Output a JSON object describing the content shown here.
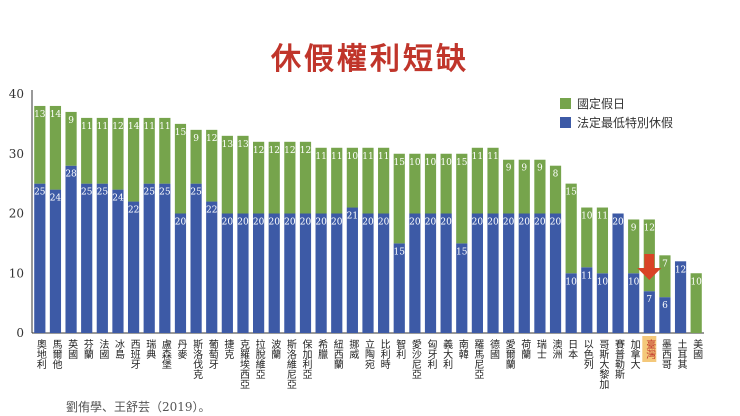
{
  "title": "休假權利短缺",
  "source": "劉侑學、王舒芸（2019）。",
  "colors": {
    "legal": "#3d5aa6",
    "holiday": "#76a44c",
    "highlight_label_bg": "#f4c87a",
    "arrow": "#d94326"
  },
  "chart_data": {
    "type": "bar",
    "stacked": true,
    "title": "休假權利短缺",
    "xlabel": "",
    "ylabel": "",
    "ylim": [
      0,
      40
    ],
    "yticks": [
      0,
      10,
      20,
      30,
      40
    ],
    "grid": false,
    "legend_position": "top-right",
    "highlight": "臺灣",
    "categories": [
      "奧地利",
      "馬爾他",
      "英國",
      "芬蘭",
      "法國",
      "冰島",
      "西班牙",
      "瑞典",
      "盧森堡",
      "丹麥",
      "斯洛伐克",
      "葡萄牙",
      "捷克",
      "克羅埃西亞",
      "拉脫維亞",
      "波蘭",
      "斯洛維尼亞",
      "保加利亞",
      "希臘",
      "紐西蘭",
      "挪威",
      "立陶宛",
      "比利時",
      "智利",
      "愛沙尼亞",
      "匈牙利",
      "義大利",
      "南韓",
      "羅馬尼亞",
      "德國",
      "愛爾蘭",
      "荷蘭",
      "瑞士",
      "澳洲",
      "日本",
      "以色列",
      "哥斯大黎加",
      "賽普勒斯",
      "加拿大",
      "臺灣",
      "墨西哥",
      "土耳其",
      "美國"
    ],
    "series": [
      {
        "name": "法定最低特別休假",
        "color": "#3d5aa6",
        "values": [
          25,
          24,
          28,
          25,
          25,
          24,
          22,
          25,
          25,
          20,
          25,
          22,
          20,
          20,
          20,
          20,
          20,
          20,
          20,
          20,
          21,
          20,
          20,
          15,
          20,
          20,
          20,
          15,
          20,
          20,
          20,
          20,
          20,
          20,
          10,
          11,
          10,
          20,
          10,
          7,
          6,
          12,
          0
        ]
      },
      {
        "name": "國定假日",
        "color": "#76a44c",
        "values": [
          13,
          14,
          9,
          11,
          11,
          12,
          14,
          11,
          11,
          15,
          9,
          12,
          13,
          13,
          12,
          12,
          12,
          12,
          11,
          11,
          10,
          11,
          11,
          15,
          10,
          10,
          10,
          15,
          11,
          11,
          9,
          9,
          9,
          8,
          15,
          10,
          11,
          0,
          9,
          12,
          7,
          0,
          10
        ]
      }
    ]
  }
}
